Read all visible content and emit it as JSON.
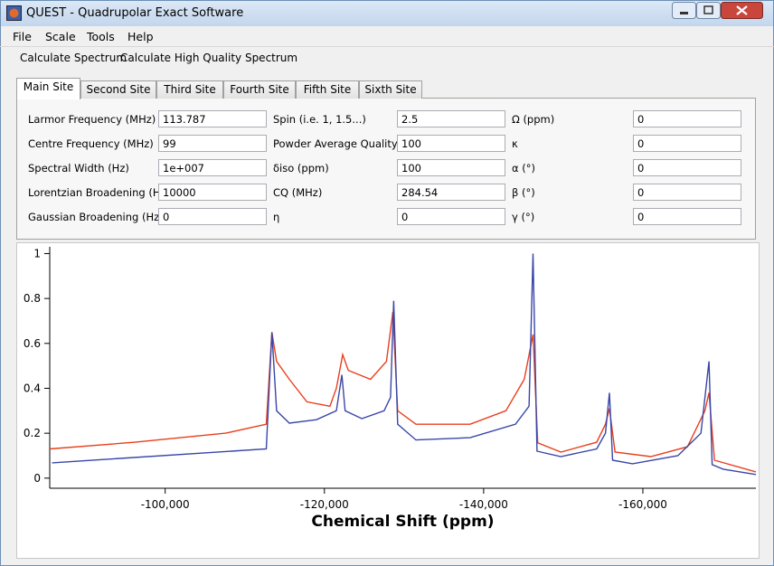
{
  "window": {
    "title": "QUEST  -  Quadrupolar Exact Software"
  },
  "menu": [
    "File",
    "Scale",
    "Tools",
    "Help"
  ],
  "toolbar": [
    "Calculate Spectrum",
    "Calculate High Quality Spectrum"
  ],
  "tabs": [
    "Main Site",
    "Second Site",
    "Third Site",
    "Fourth Site",
    "Fifth Site",
    "Sixth Site"
  ],
  "form": {
    "rows": [
      [
        {
          "label": "Larmor Frequency (MHz)",
          "value": "113.787"
        },
        {
          "label": "Spin (i.e. 1, 1.5...)",
          "value": "2.5"
        },
        {
          "label": "Ω (ppm)",
          "value": "0"
        }
      ],
      [
        {
          "label": "Centre Frequency (MHz)",
          "value": "99"
        },
        {
          "label": "Powder Average Quality",
          "value": "100"
        },
        {
          "label": "κ",
          "value": "0"
        }
      ],
      [
        {
          "label": "Spectral Width (Hz)",
          "value": "1e+007"
        },
        {
          "label": "δiso (ppm)",
          "value": "100"
        },
        {
          "label": "α (°)",
          "value": "0"
        }
      ],
      [
        {
          "label": "Lorentzian Broadening (Hz)",
          "value": "10000"
        },
        {
          "label": "CQ (MHz)",
          "value": "284.54"
        },
        {
          "label": "β (°)",
          "value": "0"
        }
      ],
      [
        {
          "label": "Gaussian Broadening (Hz)",
          "value": "0"
        },
        {
          "label": "η",
          "value": "0"
        },
        {
          "label": "γ (°)",
          "value": "0"
        }
      ]
    ]
  },
  "chart_data": {
    "type": "line",
    "xlabel": "Chemical Shift (ppm)",
    "xlim": [
      -85500,
      -174200
    ],
    "ylim": [
      -0.045,
      1.03
    ],
    "xticks": [
      {
        "value": -100000,
        "label": "-100,000"
      },
      {
        "value": -120000,
        "label": "-120,000"
      },
      {
        "value": -140000,
        "label": "-140,000"
      },
      {
        "value": -160000,
        "label": "-160,000"
      }
    ],
    "yticks": [
      0,
      0.2,
      0.4,
      0.6,
      0.8,
      1
    ],
    "series": [
      {
        "color": "#3a46a8",
        "x": [
          -85800,
          -112700,
          -113400,
          -114000,
          -115600,
          -119000,
          -121500,
          -122200,
          -122600,
          -124700,
          -127500,
          -128300,
          -128700,
          -129200,
          -131500,
          -138300,
          -144000,
          -145700,
          -146200,
          -146700,
          -149700,
          -154200,
          -155300,
          -155800,
          -156200,
          -158700,
          -164400,
          -167300,
          -168300,
          -168700,
          -170100,
          -174200
        ],
        "values": [
          0.068,
          0.13,
          0.65,
          0.3,
          0.245,
          0.26,
          0.3,
          0.46,
          0.3,
          0.265,
          0.3,
          0.36,
          0.79,
          0.24,
          0.17,
          0.18,
          0.24,
          0.32,
          1.0,
          0.12,
          0.096,
          0.13,
          0.2,
          0.38,
          0.08,
          0.064,
          0.1,
          0.2,
          0.52,
          0.06,
          0.04,
          0.016
        ]
      },
      {
        "color": "#e8401c",
        "x": [
          -85500,
          -96200,
          -107600,
          -112700,
          -113400,
          -114000,
          -115600,
          -117800,
          -120700,
          -121500,
          -122300,
          -123000,
          -125800,
          -127800,
          -128600,
          -129200,
          -131500,
          -138300,
          -142800,
          -145100,
          -146200,
          -146800,
          -149700,
          -154200,
          -155300,
          -155800,
          -156500,
          -161000,
          -165600,
          -167800,
          -168300,
          -169000,
          -174200
        ],
        "values": [
          0.13,
          0.16,
          0.2,
          0.24,
          0.65,
          0.52,
          0.44,
          0.34,
          0.32,
          0.4,
          0.55,
          0.48,
          0.44,
          0.52,
          0.74,
          0.3,
          0.24,
          0.24,
          0.3,
          0.44,
          0.64,
          0.157,
          0.116,
          0.16,
          0.24,
          0.31,
          0.116,
          0.096,
          0.14,
          0.3,
          0.38,
          0.08,
          0.028
        ]
      }
    ]
  }
}
